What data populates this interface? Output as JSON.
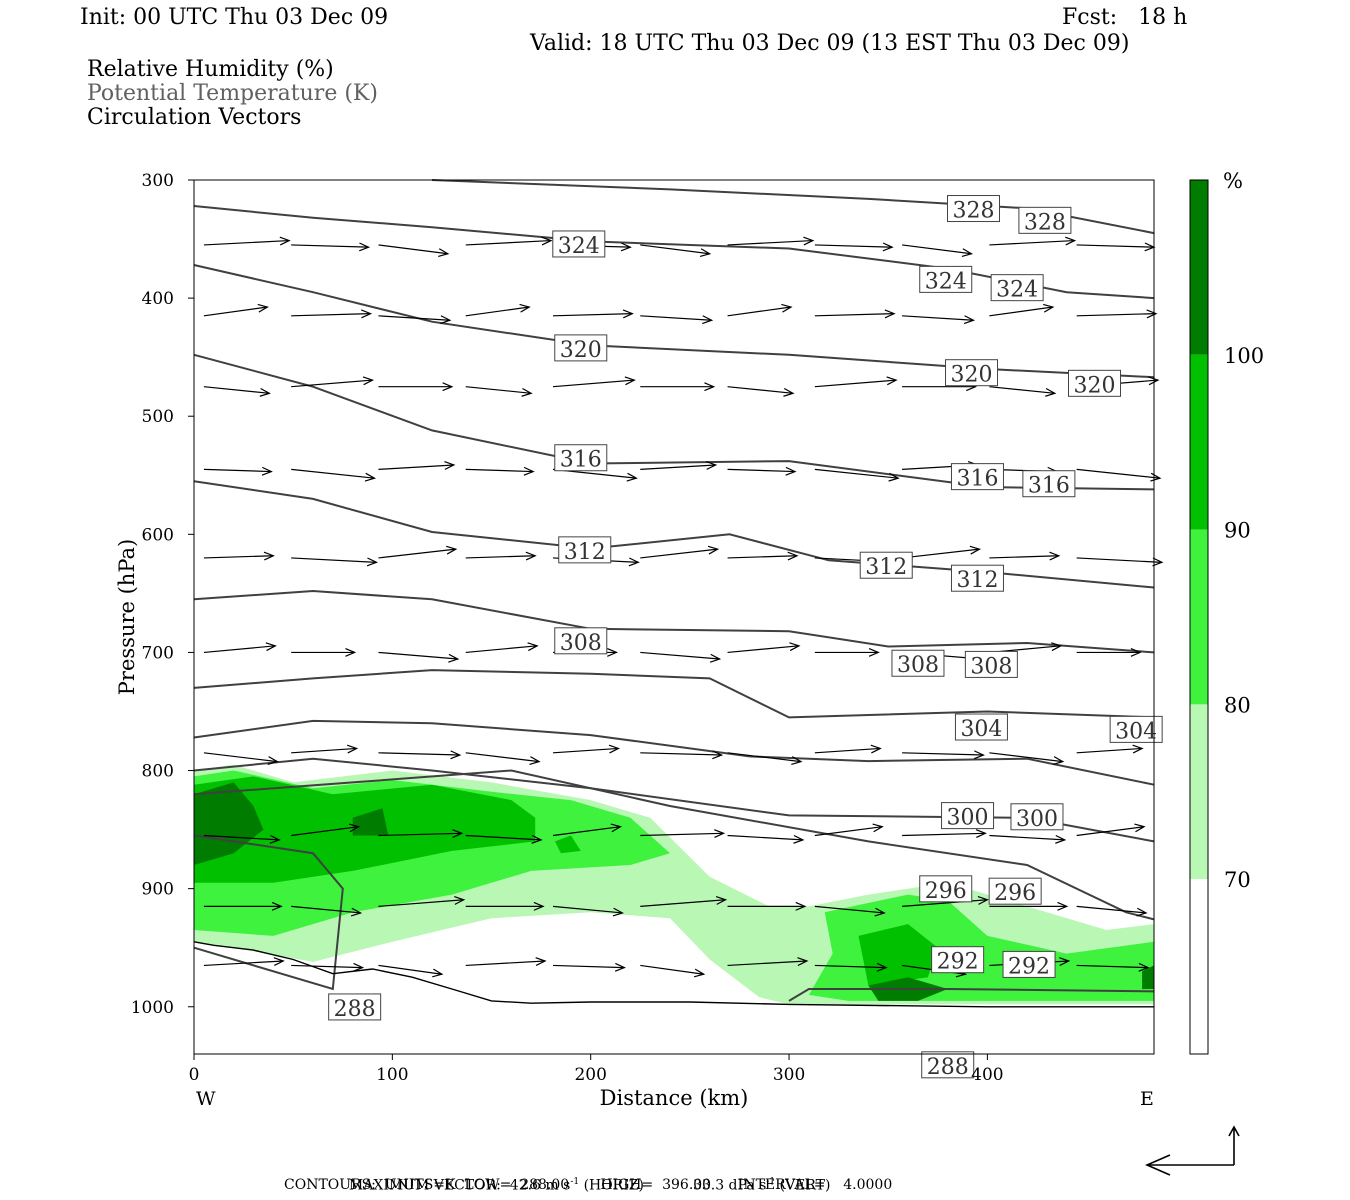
{
  "header": {
    "init": "Init: 00 UTC Thu 03 Dec 09",
    "fcst": "Fcst:   18 h",
    "valid": "Valid: 18 UTC Thu 03 Dec 09 (13 EST Thu 03 Dec 09)",
    "fields": [
      "Relative Humidity (%)",
      "Potential Temperature (K)",
      "Circulation Vectors"
    ]
  },
  "footer": {
    "max_vector_label": "MAXIMUM VECTOR:",
    "horiz": "42.6 m s",
    "horiz_exp": "-1",
    "horiz_tag": " (HORIZ)",
    "vert": "33.3 dPa s",
    "vert_exp": "-1",
    "vert_tag": " (VERT)",
    "contours": "CONTOURS:  UNITS=K  LOW=  288.00       HIGH=  396.00      INTERVAL=    4.0000"
  },
  "colors": {
    "rh_70_80": "#b9f7b4",
    "rh_80_90": "#3ef23e",
    "rh_90_100": "#00c000",
    "rh_100": "#007d00",
    "contour": "#404040"
  },
  "chart_data": {
    "type": "cross-section",
    "xlabel": "Distance (km)",
    "ylabel": "Pressure (hPa)",
    "xlim": [
      0,
      484
    ],
    "ylim": [
      1040,
      300
    ],
    "x_ticks": [
      0,
      100,
      200,
      300,
      400
    ],
    "y_ticks": [
      300,
      400,
      500,
      600,
      700,
      800,
      900,
      1000
    ],
    "x_end_labels": {
      "left": "W",
      "right": "E"
    },
    "colorbar": {
      "unit": "%",
      "levels": [
        70,
        80,
        90,
        100
      ],
      "colors": [
        "#ffffff",
        "#b9f7b4",
        "#3ef23e",
        "#00c000",
        "#007d00"
      ]
    },
    "theta_contours": [
      {
        "label": "328",
        "points": [
          [
            120,
            300
          ],
          [
            240,
            308
          ],
          [
            340,
            316
          ],
          [
            420,
            324
          ],
          [
            484,
            345
          ]
        ]
      },
      {
        "label": "324",
        "points": [
          [
            0,
            322
          ],
          [
            60,
            332
          ],
          [
            120,
            340
          ],
          [
            200,
            352
          ],
          [
            300,
            358
          ],
          [
            380,
            375
          ],
          [
            440,
            395
          ],
          [
            484,
            400
          ]
        ]
      },
      {
        "label": "320",
        "points": [
          [
            0,
            372
          ],
          [
            60,
            395
          ],
          [
            120,
            420
          ],
          [
            200,
            440
          ],
          [
            300,
            448
          ],
          [
            400,
            460
          ],
          [
            484,
            467
          ]
        ]
      },
      {
        "label": "316",
        "points": [
          [
            0,
            448
          ],
          [
            60,
            475
          ],
          [
            120,
            512
          ],
          [
            200,
            540
          ],
          [
            300,
            538
          ],
          [
            400,
            560
          ],
          [
            484,
            562
          ]
        ]
      },
      {
        "label": "312",
        "points": [
          [
            0,
            555
          ],
          [
            60,
            570
          ],
          [
            120,
            598
          ],
          [
            200,
            612
          ],
          [
            270,
            600
          ],
          [
            320,
            622
          ],
          [
            400,
            632
          ],
          [
            484,
            645
          ]
        ]
      },
      {
        "label": "308",
        "points": [
          [
            0,
            655
          ],
          [
            60,
            648
          ],
          [
            120,
            655
          ],
          [
            200,
            680
          ],
          [
            300,
            682
          ],
          [
            350,
            695
          ],
          [
            420,
            692
          ],
          [
            484,
            700
          ]
        ]
      },
      {
        "label": "304",
        "points": [
          [
            0,
            730
          ],
          [
            60,
            722
          ],
          [
            120,
            715
          ],
          [
            200,
            718
          ],
          [
            260,
            722
          ],
          [
            300,
            755
          ],
          [
            400,
            750
          ],
          [
            484,
            755
          ]
        ]
      },
      {
        "label": "300",
        "points": [
          [
            0,
            772
          ],
          [
            60,
            758
          ],
          [
            120,
            760
          ],
          [
            200,
            770
          ],
          [
            280,
            788
          ],
          [
            340,
            792
          ],
          [
            420,
            790
          ],
          [
            484,
            812
          ]
        ]
      },
      {
        "label": "296",
        "points": [
          [
            0,
            800
          ],
          [
            60,
            790
          ],
          [
            120,
            800
          ],
          [
            200,
            815
          ],
          [
            300,
            838
          ],
          [
            420,
            840
          ],
          [
            484,
            860
          ]
        ]
      },
      {
        "label": "292",
        "points": [
          [
            0,
            820
          ],
          [
            80,
            810
          ],
          [
            160,
            800
          ],
          [
            240,
            830
          ],
          [
            340,
            860
          ],
          [
            420,
            880
          ],
          [
            470,
            920
          ],
          [
            484,
            926
          ]
        ]
      },
      {
        "label": "288",
        "points": [
          [
            0,
            855
          ],
          [
            60,
            870
          ],
          [
            75,
            900
          ],
          [
            70,
            985
          ],
          [
            0,
            950
          ]
        ]
      },
      {
        "label": "288",
        "points": [
          [
            300,
            995
          ],
          [
            310,
            985
          ],
          [
            380,
            985
          ],
          [
            484,
            987
          ]
        ]
      }
    ],
    "contour_labels": [
      {
        "text": "328",
        "x": 393,
        "p": 325
      },
      {
        "text": "328",
        "x": 429,
        "p": 335
      },
      {
        "text": "324",
        "x": 194,
        "p": 355
      },
      {
        "text": "324",
        "x": 379,
        "p": 385
      },
      {
        "text": "324",
        "x": 415,
        "p": 392
      },
      {
        "text": "320",
        "x": 195,
        "p": 443
      },
      {
        "text": "320",
        "x": 392,
        "p": 464
      },
      {
        "text": "320",
        "x": 454,
        "p": 473
      },
      {
        "text": "316",
        "x": 195,
        "p": 536
      },
      {
        "text": "316",
        "x": 395,
        "p": 552
      },
      {
        "text": "316",
        "x": 431,
        "p": 558
      },
      {
        "text": "312",
        "x": 197,
        "p": 614
      },
      {
        "text": "312",
        "x": 349,
        "p": 627
      },
      {
        "text": "312",
        "x": 395,
        "p": 638
      },
      {
        "text": "308",
        "x": 195,
        "p": 691
      },
      {
        "text": "308",
        "x": 365,
        "p": 710
      },
      {
        "text": "308",
        "x": 402,
        "p": 711
      },
      {
        "text": "304",
        "x": 397,
        "p": 764
      },
      {
        "text": "304",
        "x": 475,
        "p": 766
      },
      {
        "text": "300",
        "x": 390,
        "p": 839
      },
      {
        "text": "300",
        "x": 425,
        "p": 840
      },
      {
        "text": "296",
        "x": 379,
        "p": 901
      },
      {
        "text": "296",
        "x": 414,
        "p": 903
      },
      {
        "text": "292",
        "x": 385,
        "p": 961
      },
      {
        "text": "292",
        "x": 421,
        "p": 965
      },
      {
        "text": "288",
        "x": 81,
        "p": 1001
      },
      {
        "text": "288",
        "x": 380,
        "p": 1050
      }
    ],
    "terrain": [
      [
        0,
        945
      ],
      [
        10,
        948
      ],
      [
        30,
        952
      ],
      [
        50,
        960
      ],
      [
        70,
        972
      ],
      [
        90,
        968
      ],
      [
        110,
        975
      ],
      [
        130,
        985
      ],
      [
        150,
        995
      ],
      [
        170,
        997
      ],
      [
        200,
        996
      ],
      [
        250,
        996
      ],
      [
        300,
        998
      ],
      [
        400,
        1000
      ],
      [
        484,
        1000
      ]
    ]
  }
}
